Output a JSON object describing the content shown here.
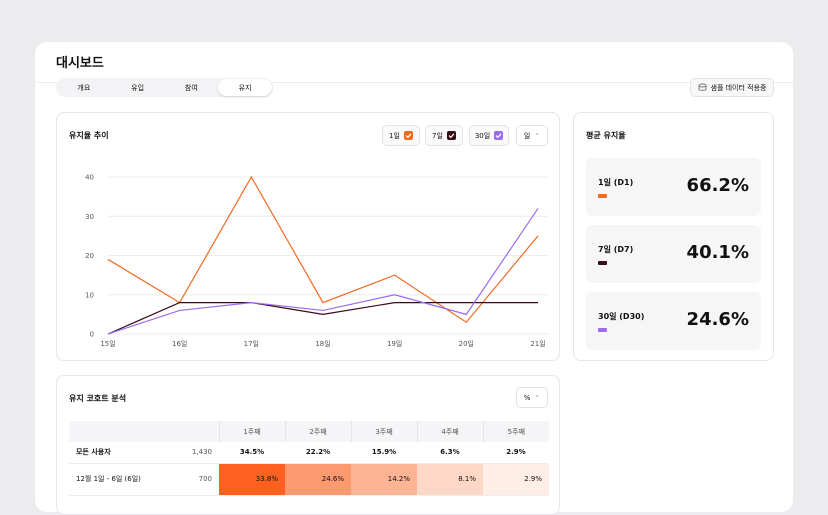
{
  "header": {
    "title": "대시보드",
    "tabs": [
      "개요",
      "유입",
      "참여",
      "유지"
    ],
    "active_tab": 3,
    "sample_button": "샘플 데이터 적용중"
  },
  "retention_chart": {
    "type": "line",
    "title": "유지율 추이",
    "categories": [
      "15일",
      "16일",
      "17일",
      "18일",
      "19일",
      "20일",
      "21일"
    ],
    "series": [
      {
        "name": "1일",
        "color": "#f26a21",
        "values": [
          19,
          8,
          40,
          8,
          15,
          3,
          25
        ]
      },
      {
        "name": "7일",
        "color": "#3a0a14",
        "values": [
          0,
          8,
          8,
          5,
          8,
          8,
          8
        ]
      },
      {
        "name": "30일",
        "color": "#9b6cf0",
        "values": [
          0,
          6,
          8,
          6,
          10,
          5,
          32
        ]
      }
    ],
    "ylim": [
      0,
      40
    ],
    "yticks": [
      0,
      10,
      20,
      30,
      40
    ],
    "grid": true,
    "period_select": "일"
  },
  "average_retention": {
    "title": "평균 유지율",
    "cards": [
      {
        "label": "1일 (D1)",
        "value": "66.2%",
        "color": "#f26a21"
      },
      {
        "label": "7일 (D7)",
        "value": "40.1%",
        "color": "#3a0a14"
      },
      {
        "label": "30일 (D30)",
        "value": "24.6%",
        "color": "#9b6cf0"
      }
    ]
  },
  "cohort": {
    "title": "유지 코호트 분석",
    "unit_select": "%",
    "columns": [
      "1주째",
      "2주째",
      "3주째",
      "4주째",
      "5주째"
    ],
    "rows": [
      {
        "label": "모든 사용자",
        "count": "1,430",
        "cells": [
          "34.5%",
          "22.2%",
          "15.9%",
          "6.3%",
          "2.9%"
        ]
      },
      {
        "label": "12월 1일 - 6일 (6일)",
        "count": "700",
        "cells": [
          "33.8%",
          "24.6%",
          "14.2%",
          "8.1%",
          "2.9%"
        ],
        "cell_colors": [
          "#ff5f1f",
          "#fb9a6e",
          "#fcb494",
          "#fdd8c6",
          "#feeee6"
        ]
      }
    ]
  }
}
